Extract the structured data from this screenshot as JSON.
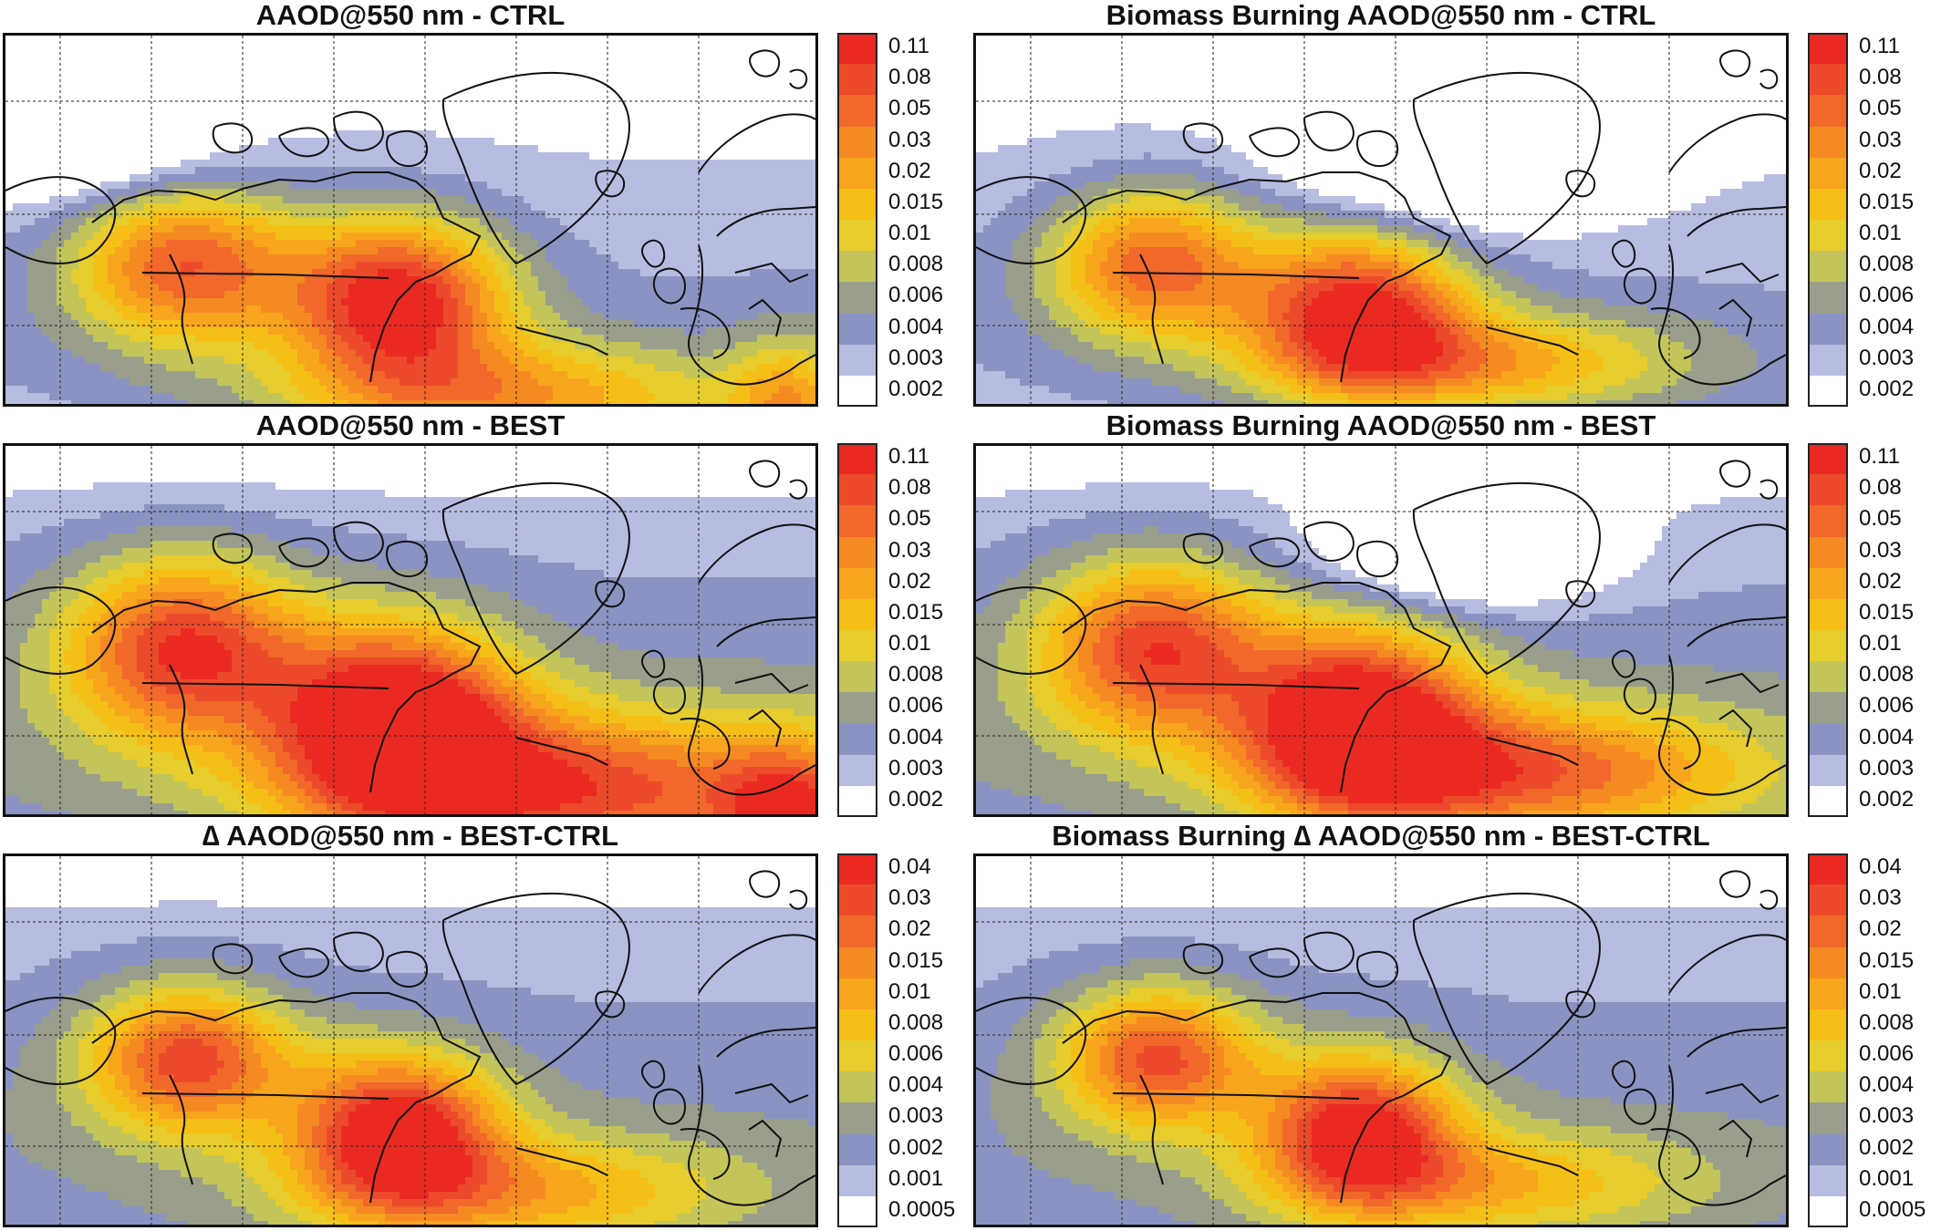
{
  "figure": {
    "panels": [
      {
        "title": "AAOD@550 nm - CTRL",
        "scale": "aaod",
        "variant": "total_ctrl"
      },
      {
        "title": "Biomass Burning AAOD@550 nm - CTRL",
        "scale": "aaod",
        "variant": "bb_ctrl"
      },
      {
        "title": "AAOD@550 nm - BEST",
        "scale": "aaod",
        "variant": "total_best"
      },
      {
        "title": "Biomass Burning AAOD@550 nm - BEST",
        "scale": "aaod",
        "variant": "bb_best"
      },
      {
        "title": "∆ AAOD@550 nm - BEST-CTRL",
        "scale": "delta",
        "variant": "delta_total"
      },
      {
        "title": "Biomass Burning ∆ AAOD@550 nm - BEST-CTRL",
        "scale": "delta",
        "variant": "delta_bb"
      }
    ],
    "colorbars": {
      "aaod": {
        "labels": [
          "0.11",
          "0.08",
          "0.05",
          "0.03",
          "0.02",
          "0.015",
          "0.01",
          "0.008",
          "0.006",
          "0.004",
          "0.003",
          "0.002"
        ]
      },
      "delta": {
        "labels": [
          "0.04",
          "0.03",
          "0.02",
          "0.015",
          "0.01",
          "0.008",
          "0.006",
          "0.004",
          "0.003",
          "0.002",
          "0.001",
          "0.0005"
        ]
      }
    },
    "colors": [
      "#ffffff",
      "#b7bde0",
      "#8b93c3",
      "#9a9f8c",
      "#c3c45a",
      "#e7cd2d",
      "#f6bf18",
      "#f7a51d",
      "#f58a22",
      "#f1682a",
      "#ec4a2a",
      "#ea2a22"
    ]
  }
}
